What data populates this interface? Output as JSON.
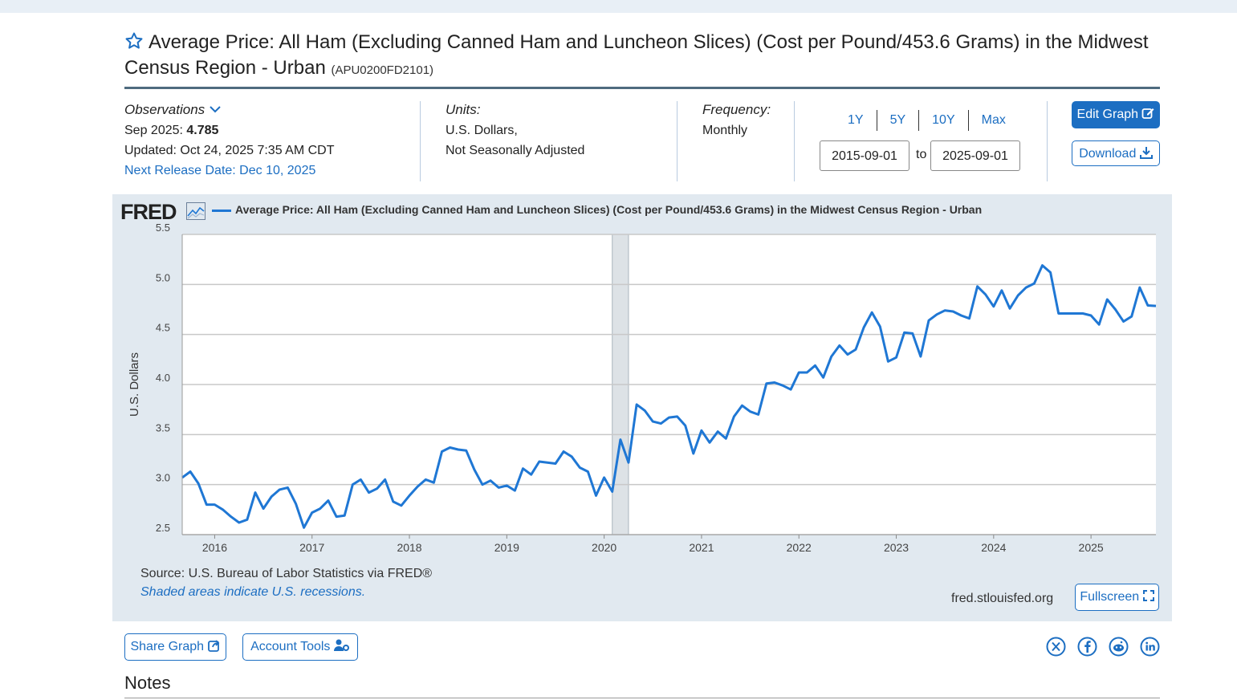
{
  "series_title": "Average Price: All Ham (Excluding Canned Ham and Luncheon Slices) (Cost per Pound/453.6 Grams) in the Midwest Census Region - Urban",
  "series_id": "(APU0200FD2101)",
  "observations": {
    "label": "Observations",
    "latest_period": "Sep 2025:",
    "latest_value": "4.785",
    "updated": "Updated: Oct 24, 2025 7:35 AM CDT",
    "next_release": "Next Release Date: Dec 10, 2025"
  },
  "units": {
    "label": "Units:",
    "line1": "U.S. Dollars,",
    "line2": "Not Seasonally Adjusted"
  },
  "frequency": {
    "label": "Frequency:",
    "value": "Monthly"
  },
  "ranges": [
    "1Y",
    "5Y",
    "10Y",
    "Max"
  ],
  "date_from": "2015-09-01",
  "date_to": "2025-09-01",
  "to_label": "to",
  "buttons": {
    "edit_graph": "Edit Graph",
    "download": "Download",
    "fullscreen": "Fullscreen",
    "share_graph": "Share Graph",
    "account_tools": "Account Tools"
  },
  "graph": {
    "logo": "FRED",
    "source": "Source: U.S. Bureau of Labor Statistics via FRED®",
    "shaded_note": "Shaded areas indicate U.S. recessions.",
    "url": "fred.stlouisfed.org"
  },
  "notes_heading": "Notes",
  "social_icons": [
    "x-icon",
    "facebook-icon",
    "reddit-icon",
    "linkedin-icon"
  ],
  "colors": {
    "accent": "#1c6ec2",
    "series": "#1f77d4",
    "graph_bg": "#e1e9f0",
    "recession": "#dde2e6"
  },
  "chart_data": {
    "type": "line",
    "title": "Average Price: All Ham (Excluding Canned Ham and Luncheon Slices) (Cost per Pound/453.6 Grams) in the Midwest Census Region - Urban",
    "ylabel": "U.S. Dollars",
    "xlabel": "",
    "ylim": [
      2.5,
      5.5
    ],
    "yticks": [
      "2.5",
      "3.0",
      "3.5",
      "4.0",
      "4.5",
      "5.0",
      "5.5"
    ],
    "xticks": [
      "2016",
      "2017",
      "2018",
      "2019",
      "2020",
      "2021",
      "2022",
      "2023",
      "2024",
      "2025"
    ],
    "xrange": [
      "2015-09",
      "2025-09"
    ],
    "grid": true,
    "recession": [
      "2020-02",
      "2020-04"
    ],
    "series": [
      {
        "name": "Average Price: All Ham (Excluding Canned Ham and Luncheon Slices) (Cost per Pound/453.6 Grams) in the Midwest Census Region - Urban",
        "start": "2015-09",
        "frequency": "monthly",
        "values": [
          3.07,
          3.13,
          3.01,
          2.8,
          2.8,
          2.75,
          2.68,
          2.62,
          2.65,
          2.92,
          2.76,
          2.88,
          2.95,
          2.97,
          2.81,
          2.57,
          2.72,
          2.76,
          2.84,
          2.68,
          2.69,
          3.0,
          3.05,
          2.92,
          2.96,
          3.05,
          2.83,
          2.79,
          2.89,
          2.98,
          3.05,
          3.02,
          3.33,
          3.37,
          3.35,
          3.34,
          3.15,
          3.0,
          3.04,
          2.97,
          2.99,
          2.94,
          3.16,
          3.1,
          3.23,
          3.22,
          3.21,
          3.33,
          3.28,
          3.17,
          3.13,
          2.89,
          3.07,
          2.93,
          3.45,
          3.22,
          3.8,
          3.74,
          3.63,
          3.61,
          3.67,
          3.68,
          3.59,
          3.31,
          3.54,
          3.42,
          3.53,
          3.46,
          3.68,
          3.79,
          3.73,
          3.7,
          4.01,
          4.02,
          3.99,
          3.95,
          4.12,
          4.12,
          4.19,
          4.07,
          4.28,
          4.39,
          4.3,
          4.35,
          4.57,
          4.72,
          4.58,
          4.23,
          4.27,
          4.52,
          4.51,
          4.28,
          4.64,
          4.7,
          4.74,
          4.73,
          4.69,
          4.66,
          4.98,
          4.9,
          4.78,
          4.94,
          4.76,
          4.89,
          4.97,
          5.01,
          5.19,
          5.12,
          4.71,
          4.71,
          4.71,
          4.71,
          4.69,
          4.6,
          4.85,
          4.75,
          4.63,
          4.68,
          4.97,
          4.79,
          4.785
        ]
      }
    ]
  }
}
